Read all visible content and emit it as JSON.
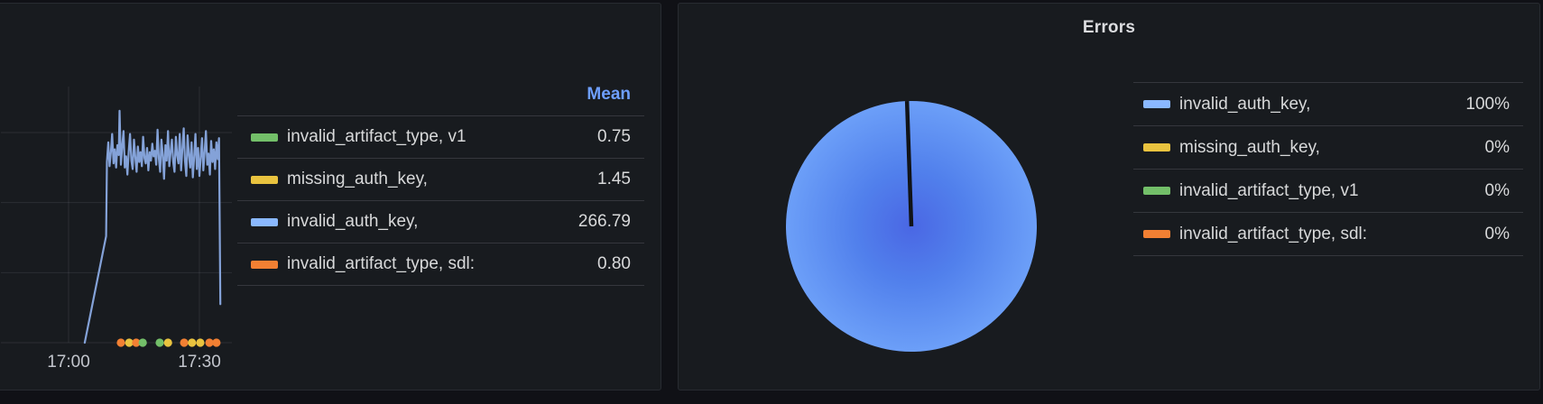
{
  "app": "grafana-dashboard",
  "palette": {
    "green": "#73BF69",
    "yellow": "#E9C33F",
    "blue": "#8AB8FF",
    "orange": "#F28033",
    "blue_line": "#84A2D8",
    "mean_header": "#6E9FFF",
    "text": "#D8D9DA",
    "axis_text": "#C2C5CC",
    "grid": "rgba(204,204,220,0.11)",
    "separator": "rgba(204,204,220,0.16)",
    "panel_bg": "#181B1F",
    "panel_border": "#282B31",
    "page_bg": "#101116",
    "pie_center": "#4A67E4",
    "pie_mid": "#5180EC",
    "pie_edge": "#6C9FF8",
    "pie_slit": "#111317"
  },
  "left_panel": {
    "legend": {
      "header": "Mean",
      "rows": [
        {
          "label": "invalid_artifact_type, v1",
          "value": "0.75",
          "color_key": "green"
        },
        {
          "label": "missing_auth_key,",
          "value": "1.45",
          "color_key": "yellow"
        },
        {
          "label": "invalid_auth_key,",
          "value": "266.79",
          "color_key": "blue"
        },
        {
          "label": "invalid_artifact_type, sdl:",
          "value": "0.80",
          "color_key": "orange"
        }
      ]
    }
  },
  "right_panel": {
    "title": "Errors",
    "legend": {
      "rows": [
        {
          "label": "invalid_auth_key,",
          "value": "100%",
          "color_key": "blue"
        },
        {
          "label": "missing_auth_key,",
          "value": "0%",
          "color_key": "yellow"
        },
        {
          "label": "invalid_artifact_type, v1",
          "value": "0%",
          "color_key": "green"
        },
        {
          "label": "invalid_artifact_type, sdl:",
          "value": "0%",
          "color_key": "orange"
        }
      ]
    }
  },
  "chart_data": [
    {
      "type": "line",
      "title": "",
      "stat_column": "Mean",
      "x_axis": {
        "unit": "minutes after 17:00",
        "ticks": [
          {
            "t": 0,
            "label": "17:00"
          },
          {
            "t": 30,
            "label": "17:30"
          }
        ]
      },
      "y_axis": {
        "range": [
          0,
          365
        ],
        "gridlines": [
          100,
          200,
          300
        ],
        "labels_visible": false
      },
      "series": [
        {
          "name": "invalid_auth_key,",
          "color_key": "blue_line",
          "mean": 266.79,
          "points": [
            [
              3.7,
              0
            ],
            [
              8.6,
              152
            ],
            [
              8.8,
              258
            ],
            [
              9.1,
              286
            ],
            [
              9.4,
              252
            ],
            [
              9.7,
              272
            ],
            [
              10.0,
              298
            ],
            [
              10.3,
              256
            ],
            [
              10.6,
              276
            ],
            [
              10.9,
              250
            ],
            [
              11.2,
              282
            ],
            [
              11.5,
              268
            ],
            [
              11.7,
              331
            ],
            [
              12.0,
              254
            ],
            [
              12.3,
              280
            ],
            [
              12.6,
              302
            ],
            [
              12.9,
              250
            ],
            [
              13.2,
              266
            ],
            [
              13.5,
              240
            ],
            [
              13.8,
              274
            ],
            [
              14.1,
              298
            ],
            [
              14.4,
              260
            ],
            [
              14.7,
              248
            ],
            [
              15.0,
              290
            ],
            [
              15.3,
              266
            ],
            [
              15.6,
              244
            ],
            [
              15.9,
              280
            ],
            [
              16.2,
              258
            ],
            [
              16.5,
              272
            ],
            [
              16.8,
              252
            ],
            [
              17.1,
              294
            ],
            [
              17.4,
              264
            ],
            [
              17.7,
              256
            ],
            [
              18.0,
              278
            ],
            [
              18.3,
              246
            ],
            [
              18.6,
              272
            ],
            [
              18.9,
              260
            ],
            [
              19.2,
              284
            ],
            [
              19.5,
              266
            ],
            [
              19.8,
              274
            ],
            [
              20.1,
              254
            ],
            [
              20.4,
              304
            ],
            [
              20.7,
              264
            ],
            [
              21.0,
              244
            ],
            [
              21.3,
              290
            ],
            [
              21.6,
              268
            ],
            [
              21.9,
              234
            ],
            [
              22.2,
              282
            ],
            [
              22.5,
              260
            ],
            [
              22.8,
              302
            ],
            [
              23.1,
              252
            ],
            [
              23.4,
              272
            ],
            [
              23.7,
              290
            ],
            [
              24.0,
              258
            ],
            [
              24.3,
              244
            ],
            [
              24.6,
              294
            ],
            [
              24.9,
              268
            ],
            [
              25.2,
              256
            ],
            [
              25.5,
              298
            ],
            [
              25.8,
              246
            ],
            [
              26.1,
              276
            ],
            [
              26.4,
              306
            ],
            [
              26.7,
              260
            ],
            [
              27.0,
              238
            ],
            [
              27.3,
              296
            ],
            [
              27.6,
              268
            ],
            [
              27.9,
              250
            ],
            [
              28.2,
              286
            ],
            [
              28.5,
              236
            ],
            [
              28.8,
              266
            ],
            [
              29.1,
              298
            ],
            [
              29.4,
              248
            ],
            [
              29.7,
              278
            ],
            [
              30.0,
              238
            ],
            [
              30.3,
              264
            ],
            [
              30.6,
              292
            ],
            [
              30.9,
              246
            ],
            [
              31.2,
              272
            ],
            [
              31.5,
              302
            ],
            [
              31.8,
              254
            ],
            [
              32.1,
              270
            ],
            [
              32.4,
              240
            ],
            [
              32.7,
              288
            ],
            [
              33.0,
              258
            ],
            [
              33.3,
              276
            ],
            [
              33.6,
              248
            ],
            [
              33.9,
              286
            ],
            [
              34.2,
              262
            ],
            [
              34.5,
              292
            ],
            [
              34.8,
              55
            ]
          ]
        }
      ],
      "event_dots": {
        "note": "near-zero samples of the other error series drawn on the x-axis",
        "value": 0,
        "points": [
          [
            12.0,
            "orange"
          ],
          [
            13.9,
            "yellow"
          ],
          [
            15.5,
            "orange"
          ],
          [
            17.0,
            "green"
          ],
          [
            20.9,
            "green"
          ],
          [
            22.8,
            "yellow"
          ],
          [
            26.5,
            "orange"
          ],
          [
            28.3,
            "yellow"
          ],
          [
            30.2,
            "yellow"
          ],
          [
            32.3,
            "orange"
          ],
          [
            33.9,
            "orange"
          ]
        ]
      },
      "series_stats": [
        {
          "name": "invalid_artifact_type, v1",
          "mean": 0.75
        },
        {
          "name": "missing_auth_key,",
          "mean": 1.45
        },
        {
          "name": "invalid_auth_key,",
          "mean": 266.79
        },
        {
          "name": "invalid_artifact_type, sdl:",
          "mean": 0.8
        }
      ]
    },
    {
      "type": "pie",
      "title": "Errors",
      "legend_position": "right",
      "slices": [
        {
          "label": "invalid_auth_key,",
          "pct": 100,
          "color_key": "blue"
        },
        {
          "label": "missing_auth_key,",
          "pct": 0,
          "color_key": "yellow"
        },
        {
          "label": "invalid_artifact_type, v1",
          "pct": 0,
          "color_key": "green"
        },
        {
          "label": "invalid_artifact_type, sdl:",
          "pct": 0,
          "color_key": "orange"
        }
      ]
    }
  ]
}
